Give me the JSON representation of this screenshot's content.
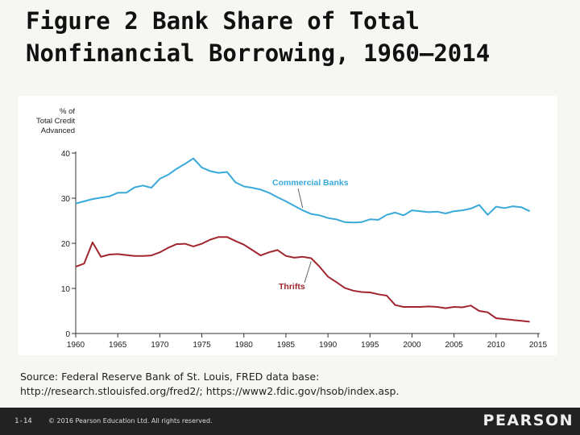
{
  "slide": {
    "title_line1": "Figure 2 Bank Share of Total",
    "title_line2": "Nonfinancial Borrowing, 1960–2014",
    "source_line1": "Source: Federal Reserve Bank of St. Louis, FRED data base:",
    "source_line2": "http://research.stlouisfed.org/fred2/; https://www2.fdic.gov/hsob/index.asp.",
    "slide_number": "1-14",
    "copyright": "© 2016 Pearson Education Ltd. All rights reserved.",
    "logo_text": "PEARSON"
  },
  "chart_data": {
    "type": "line",
    "title": "",
    "ylabel_lines": [
      "% of",
      "Total Credit",
      "Advanced"
    ],
    "xlabel": "",
    "xlim": [
      1960,
      2015
    ],
    "ylim": [
      0,
      40
    ],
    "xticks": [
      1960,
      1965,
      1970,
      1975,
      1980,
      1985,
      1990,
      1995,
      2000,
      2005,
      2010,
      2015
    ],
    "yticks": [
      0,
      10,
      20,
      30,
      40
    ],
    "grid": false,
    "series": [
      {
        "name": "Commercial Banks",
        "color": "#38a9d9",
        "x": [
          1960,
          1961,
          1962,
          1963,
          1964,
          1965,
          1966,
          1967,
          1968,
          1969,
          1970,
          1971,
          1972,
          1973,
          1974,
          1975,
          1976,
          1977,
          1978,
          1979,
          1980,
          1981,
          1982,
          1983,
          1984,
          1985,
          1986,
          1987,
          1988,
          1989,
          1990,
          1991,
          1992,
          1993,
          1994,
          1995,
          1996,
          1997,
          1998,
          1999,
          2000,
          2001,
          2002,
          2003,
          2004,
          2005,
          2006,
          2007,
          2008,
          2009,
          2010,
          2011,
          2012,
          2013,
          2014
        ],
        "values": [
          28.8,
          29.3,
          29.8,
          30.1,
          30.4,
          31.2,
          31.2,
          32.4,
          32.8,
          32.3,
          34.3,
          35.2,
          36.5,
          37.6,
          38.8,
          36.8,
          36.0,
          35.6,
          35.8,
          33.5,
          32.6,
          32.3,
          31.9,
          31.2,
          30.2,
          29.3,
          28.3,
          27.3,
          26.5,
          26.2,
          25.6,
          25.3,
          24.7,
          24.6,
          24.7,
          25.3,
          25.2,
          26.3,
          26.8,
          26.2,
          27.3,
          27.1,
          26.9,
          27.0,
          26.6,
          27.1,
          27.3,
          27.7,
          28.5,
          26.3,
          28.1,
          27.8,
          28.2,
          28.0,
          27.1
        ]
      },
      {
        "name": "Thrifts",
        "color": "#a0262e",
        "x": [
          1960,
          1961,
          1962,
          1963,
          1964,
          1965,
          1966,
          1967,
          1968,
          1969,
          1970,
          1971,
          1972,
          1973,
          1974,
          1975,
          1976,
          1977,
          1978,
          1979,
          1980,
          1981,
          1982,
          1983,
          1984,
          1985,
          1986,
          1987,
          1988,
          1989,
          1990,
          1991,
          1992,
          1993,
          1994,
          1995,
          1996,
          1997,
          1998,
          1999,
          2000,
          2001,
          2002,
          2003,
          2004,
          2005,
          2006,
          2007,
          2008,
          2009,
          2010,
          2011,
          2012,
          2013,
          2014
        ],
        "values": [
          14.8,
          15.5,
          20.2,
          17.0,
          17.5,
          17.6,
          17.4,
          17.2,
          17.2,
          17.3,
          18.0,
          19.0,
          19.8,
          19.9,
          19.3,
          19.9,
          20.8,
          21.4,
          21.4,
          20.5,
          19.7,
          18.5,
          17.3,
          18.0,
          18.5,
          17.2,
          16.8,
          17.0,
          16.7,
          14.8,
          12.6,
          11.4,
          10.1,
          9.5,
          9.2,
          9.1,
          8.7,
          8.4,
          6.3,
          5.9,
          5.9,
          5.9,
          6.0,
          5.9,
          5.6,
          5.9,
          5.8,
          6.2,
          5.0,
          4.7,
          3.4,
          3.2,
          3.0,
          2.8,
          2.6
        ]
      }
    ],
    "annotations": [
      {
        "text": "Commercial Banks",
        "points_to_year": 1987
      },
      {
        "text": "Thrifts",
        "points_to_year": 1988
      }
    ]
  }
}
